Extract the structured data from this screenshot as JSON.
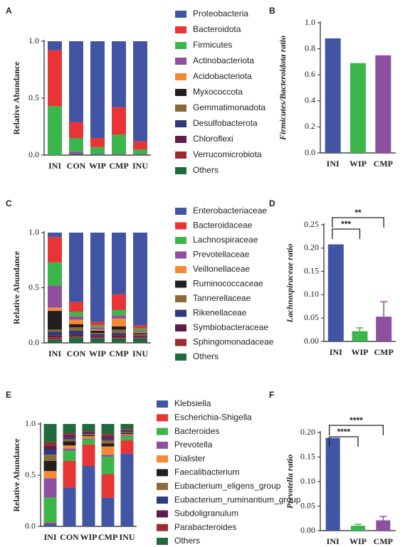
{
  "chart_data": [
    {
      "type": "stacked_bar",
      "label": "A",
      "ylabel": "Relative Abundance",
      "categories": [
        "INI",
        "CON",
        "WIP",
        "CMP",
        "INU"
      ],
      "ylim": [
        0,
        1
      ],
      "yticks": [
        {
          "value": 0,
          "label": "0.0"
        },
        0.5,
        {
          "value": 1,
          "label": "1.0"
        }
      ],
      "series": [
        {
          "name": "Proteobacteria",
          "color": "#4155a4",
          "values": [
            0.08,
            0.71,
            0.85,
            0.58,
            0.88
          ]
        },
        {
          "name": "Bacteroidota",
          "color": "#e83434",
          "values": [
            0.49,
            0.14,
            0.08,
            0.24,
            0.07
          ]
        },
        {
          "name": "Firmicutes",
          "color": "#3cb54a",
          "values": [
            0.43,
            0.12,
            0.06,
            0.17,
            0.04
          ]
        },
        {
          "name": "Actinobacteriota",
          "color": "#8e4fa0",
          "values": [
            0,
            0.02,
            0.005,
            0.005,
            0.005
          ]
        },
        {
          "name": "Acidobacteriota",
          "color": "#f58a34",
          "values": [
            0,
            0,
            0,
            0,
            0
          ]
        },
        {
          "name": "Myxococcota",
          "color": "#231f20",
          "values": [
            0,
            0,
            0,
            0,
            0
          ]
        },
        {
          "name": "Gemmatimonadota",
          "color": "#8b6a3a",
          "values": [
            0,
            0,
            0,
            0,
            0
          ]
        },
        {
          "name": "Desulfobacterota",
          "color": "#2e3a7c",
          "values": [
            0,
            0,
            0,
            0,
            0
          ]
        },
        {
          "name": "Chloroflexi",
          "color": "#5e1d4c",
          "values": [
            0,
            0,
            0,
            0,
            0
          ]
        },
        {
          "name": "Verrucomicrobiota",
          "color": "#9e2a2b",
          "values": [
            0,
            0,
            0,
            0,
            0
          ]
        },
        {
          "name": "Others",
          "color": "#1f6b3e",
          "values": [
            0,
            0.01,
            0.005,
            0.005,
            0.005
          ]
        }
      ]
    },
    {
      "type": "bar",
      "label": "B",
      "ylabel": "Firmicutes/Bacteroidota ratio",
      "categories": [
        "INI",
        "WIP",
        "CMP"
      ],
      "values": [
        0.88,
        0.69,
        0.75
      ],
      "colors": [
        "#4155a4",
        "#3cb54a",
        "#8e4fa0"
      ],
      "ylim": [
        0,
        1
      ],
      "yticks": [
        {
          "value": 0,
          "label": "0.0"
        },
        0.2,
        0.4,
        0.6,
        0.8,
        {
          "value": 1,
          "label": "1.0"
        }
      ]
    },
    {
      "type": "stacked_bar",
      "label": "C",
      "ylabel": "Relative Abundance",
      "categories": [
        "INI",
        "CON",
        "WIP",
        "CMP",
        "INU"
      ],
      "ylim": [
        0,
        1
      ],
      "yticks": [
        {
          "value": 0,
          "label": "0.0"
        },
        0.5,
        {
          "value": 1,
          "label": "1.0"
        }
      ],
      "series": [
        {
          "name": "Enterobacteriaceae",
          "color": "#4155a4",
          "values": [
            0.04,
            0.63,
            0.81,
            0.56,
            0.84
          ]
        },
        {
          "name": "Bacteroidaceae",
          "color": "#e83434",
          "values": [
            0.23,
            0.09,
            0.03,
            0.14,
            0.03
          ]
        },
        {
          "name": "Lachnospiraceae",
          "color": "#3cb54a",
          "values": [
            0.21,
            0.04,
            0.02,
            0.05,
            0.02
          ]
        },
        {
          "name": "Prevotellaceae",
          "color": "#8e4fa0",
          "values": [
            0.2,
            0.03,
            0.02,
            0.03,
            0.01
          ]
        },
        {
          "name": "Veillonellaceae",
          "color": "#f58a34",
          "values": [
            0.03,
            0.04,
            0.01,
            0.07,
            0.01
          ]
        },
        {
          "name": "Ruminococcaceae",
          "color": "#231f20",
          "values": [
            0.17,
            0.03,
            0.02,
            0.03,
            0.01
          ]
        },
        {
          "name": "Tannerellaceae",
          "color": "#8b6a3a",
          "values": [
            0.02,
            0.03,
            0.01,
            0.03,
            0.01
          ]
        },
        {
          "name": "Rikenellaceae",
          "color": "#2e3a7c",
          "values": [
            0.03,
            0.03,
            0.02,
            0.02,
            0.01
          ]
        },
        {
          "name": "Symbiobacteraceae",
          "color": "#5e1d4c",
          "values": [
            0.02,
            0.02,
            0.01,
            0.02,
            0.01
          ]
        },
        {
          "name": "Sphingomonadaceae",
          "color": "#9e2a2b",
          "values": [
            0.02,
            0.01,
            0.01,
            0.01,
            0.01
          ]
        },
        {
          "name": "Others",
          "color": "#1f6b3e",
          "values": [
            0.03,
            0.05,
            0.04,
            0.04,
            0.04
          ]
        }
      ]
    },
    {
      "type": "bar",
      "label": "D",
      "ylabel": "Lachnospiraceae ratio",
      "categories": [
        "INI",
        "WIP",
        "CMP"
      ],
      "values": [
        0.208,
        0.022,
        0.053
      ],
      "errors": [
        null,
        0.007,
        0.032
      ],
      "colors": [
        "#4155a4",
        "#3cb54a",
        "#8e4fa0"
      ],
      "annotations": [
        "***",
        "**"
      ],
      "ylim": [
        0,
        0.25
      ],
      "yticks": [
        {
          "value": 0,
          "label": "0.00"
        },
        0.05,
        {
          "value": 0.1,
          "label": "0.10"
        },
        0.15,
        {
          "value": 0.2,
          "label": "0.20"
        },
        0.25
      ]
    },
    {
      "type": "stacked_bar",
      "label": "E",
      "ylabel": "Relative Abundance",
      "categories": [
        "INI",
        "CON",
        "WIP",
        "CMP",
        "INU"
      ],
      "ylim": [
        0,
        1
      ],
      "yticks": [
        {
          "value": 0,
          "label": "0.0"
        },
        0.5,
        {
          "value": 1,
          "label": "1.0"
        }
      ],
      "series": [
        {
          "name": "Klebsiella",
          "color": "#4155a4",
          "values": [
            0.03,
            0.38,
            0.59,
            0.28,
            0.71
          ]
        },
        {
          "name": "Escherichia-Shigella",
          "color": "#e83434",
          "values": [
            0.01,
            0.26,
            0.21,
            0.23,
            0.13
          ]
        },
        {
          "name": "Bacteroides",
          "color": "#3cb54a",
          "values": [
            0.24,
            0.1,
            0.05,
            0.17,
            0.04
          ]
        },
        {
          "name": "Prevotella",
          "color": "#8e4fa0",
          "values": [
            0.19,
            0.02,
            0.01,
            0.02,
            0.01
          ]
        },
        {
          "name": "Dialister",
          "color": "#f58a34",
          "values": [
            0.07,
            0.03,
            0.02,
            0.08,
            0.01
          ]
        },
        {
          "name": "Faecalibacterium",
          "color": "#231f20",
          "values": [
            0.1,
            0.04,
            0.01,
            0.03,
            0.01
          ]
        },
        {
          "name": "Eubacterium_eligens_group",
          "color": "#8b6a3a",
          "values": [
            0.06,
            0.02,
            0.01,
            0.03,
            0.01
          ]
        },
        {
          "name": "Eubacterium_ruminantium_group",
          "color": "#2e3a7c",
          "values": [
            0.05,
            0.02,
            0.01,
            0.02,
            0.01
          ]
        },
        {
          "name": "Subdoligranulum",
          "color": "#5e1d4c",
          "values": [
            0.04,
            0.02,
            0.01,
            0.02,
            0.01
          ]
        },
        {
          "name": "Parabacteroides",
          "color": "#9e2a2b",
          "values": [
            0.03,
            0.02,
            0.01,
            0.02,
            0.01
          ]
        },
        {
          "name": "Others",
          "color": "#1f6b3e",
          "values": [
            0.18,
            0.09,
            0.07,
            0.1,
            0.05
          ]
        }
      ]
    },
    {
      "type": "bar",
      "label": "F",
      "ylabel": "Prevotella ratio",
      "categories": [
        "INI",
        "WIP",
        "CMP"
      ],
      "values": [
        0.189,
        0.01,
        0.021
      ],
      "errors": [
        null,
        0.003,
        0.008
      ],
      "colors": [
        "#4155a4",
        "#3cb54a",
        "#8e4fa0"
      ],
      "annotations": [
        "****",
        "****"
      ],
      "ylim": [
        0,
        0.2
      ],
      "yticks": [
        {
          "value": 0,
          "label": "0.00"
        },
        0.05,
        {
          "value": 0.1,
          "label": "0.10"
        },
        0.15,
        {
          "value": 0.2,
          "label": "0.20"
        }
      ]
    }
  ]
}
